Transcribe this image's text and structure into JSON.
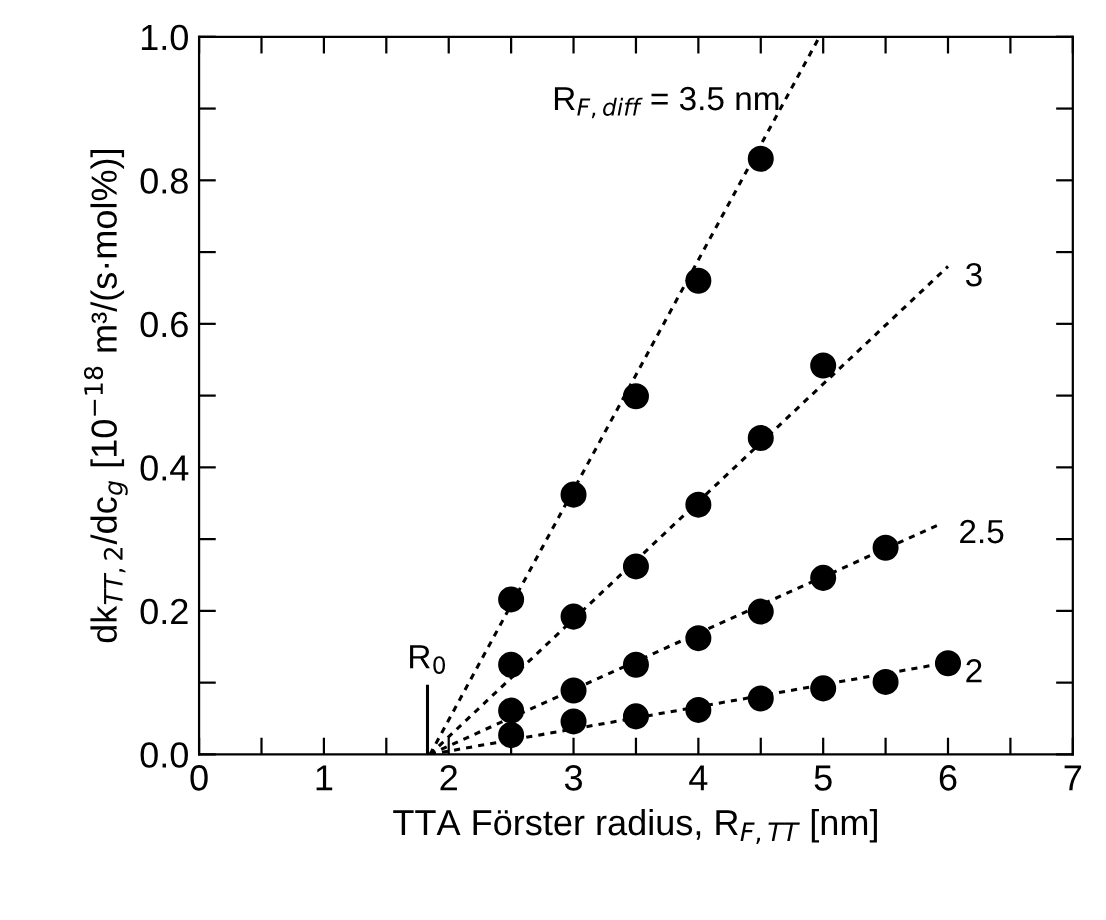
{
  "chart_data": {
    "type": "scatter",
    "xlabel": "TTA Förster radius, R$_{F,TT}$ [nm]",
    "ylabel": "dk$_{TT,2}$/dc$_{g}$ [10$^{−18}$ m³/(s·mol%)]",
    "xlim": [
      0,
      7
    ],
    "ylim": [
      0,
      1.0
    ],
    "xticks": [
      0,
      {
        "value": 0.5,
        "label": null
      },
      1,
      {
        "value": 1.5,
        "label": null
      },
      2,
      {
        "value": 2.5,
        "label": null
      },
      3,
      {
        "value": 3.5,
        "label": null
      },
      4,
      {
        "value": 4.5,
        "label": null
      },
      5,
      {
        "value": 5.5,
        "label": null
      },
      6,
      {
        "value": 6.5,
        "label": null
      },
      7
    ],
    "yticks": [
      {
        "value": 0,
        "label": "0.0"
      },
      {
        "value": 0.1,
        "label": null
      },
      0.2,
      {
        "value": 0.3,
        "label": null
      },
      0.4,
      {
        "value": 0.5,
        "label": null
      },
      0.6,
      {
        "value": 0.7,
        "label": null
      },
      0.8,
      {
        "value": 0.9,
        "label": null
      },
      {
        "value": 1.0,
        "label": "1.0"
      }
    ],
    "grid": false,
    "legend": false,
    "marker": "circle",
    "series": [
      {
        "color": "#000000",
        "x": [
          2.5,
          3,
          3.5,
          4,
          4.5
        ],
        "values": [
          0.216,
          0.362,
          0.499,
          0.66,
          0.83
        ]
      },
      {
        "color": "#000000",
        "x": [
          2.5,
          3,
          3.5,
          4,
          4.5,
          5
        ],
        "values": [
          0.125,
          0.192,
          0.262,
          0.348,
          0.441,
          0.542
        ]
      },
      {
        "color": "#000000",
        "x": [
          2.5,
          3,
          3.5,
          4,
          4.5,
          5,
          5.5
        ],
        "values": [
          0.061,
          0.089,
          0.125,
          0.162,
          0.199,
          0.246,
          0.288
        ]
      },
      {
        "color": "#000000",
        "x": [
          2.5,
          3,
          3.5,
          4,
          4.5,
          5,
          5.5,
          6
        ],
        "values": [
          0.027,
          0.046,
          0.053,
          0.062,
          0.078,
          0.092,
          0.101,
          0.127
        ]
      },
      {
        "type": "line",
        "line_style": "dotted",
        "marker": "none",
        "color": "#000000",
        "x": [
          1.85,
          4.97
        ],
        "values": [
          0,
          1.0
        ]
      },
      {
        "type": "line",
        "line_style": "dotted",
        "marker": "none",
        "color": "#000000",
        "x": [
          1.85,
          6.0
        ],
        "values": [
          0,
          0.68
        ]
      },
      {
        "type": "line",
        "line_style": "dotted",
        "marker": "none",
        "color": "#000000",
        "x": [
          1.85,
          5.95
        ],
        "values": [
          0,
          0.322
        ]
      },
      {
        "type": "line",
        "line_style": "dotted",
        "marker": "none",
        "color": "#000000",
        "x": [
          1.85,
          6.0
        ],
        "values": [
          0,
          0.128
        ]
      },
      {
        "type": "line",
        "line_style": "solid",
        "marker": "none",
        "color": "#000000",
        "x": [
          1.83,
          1.83
        ],
        "values": [
          0,
          0.095
        ]
      }
    ],
    "annotations": [
      {
        "text": "R$_{F,diff}$ = 3.5 nm",
        "x": 4.97,
        "y": 1.0
      },
      {
        "text": "3",
        "x": 6.0,
        "y": 0.68
      },
      {
        "text": "2.5",
        "x": 5.95,
        "y": 0.322
      },
      {
        "text": "2",
        "x": 6.0,
        "y": 0.128
      },
      {
        "text": "R$_{0}$",
        "x": 1.83,
        "y": 0.095
      }
    ]
  }
}
